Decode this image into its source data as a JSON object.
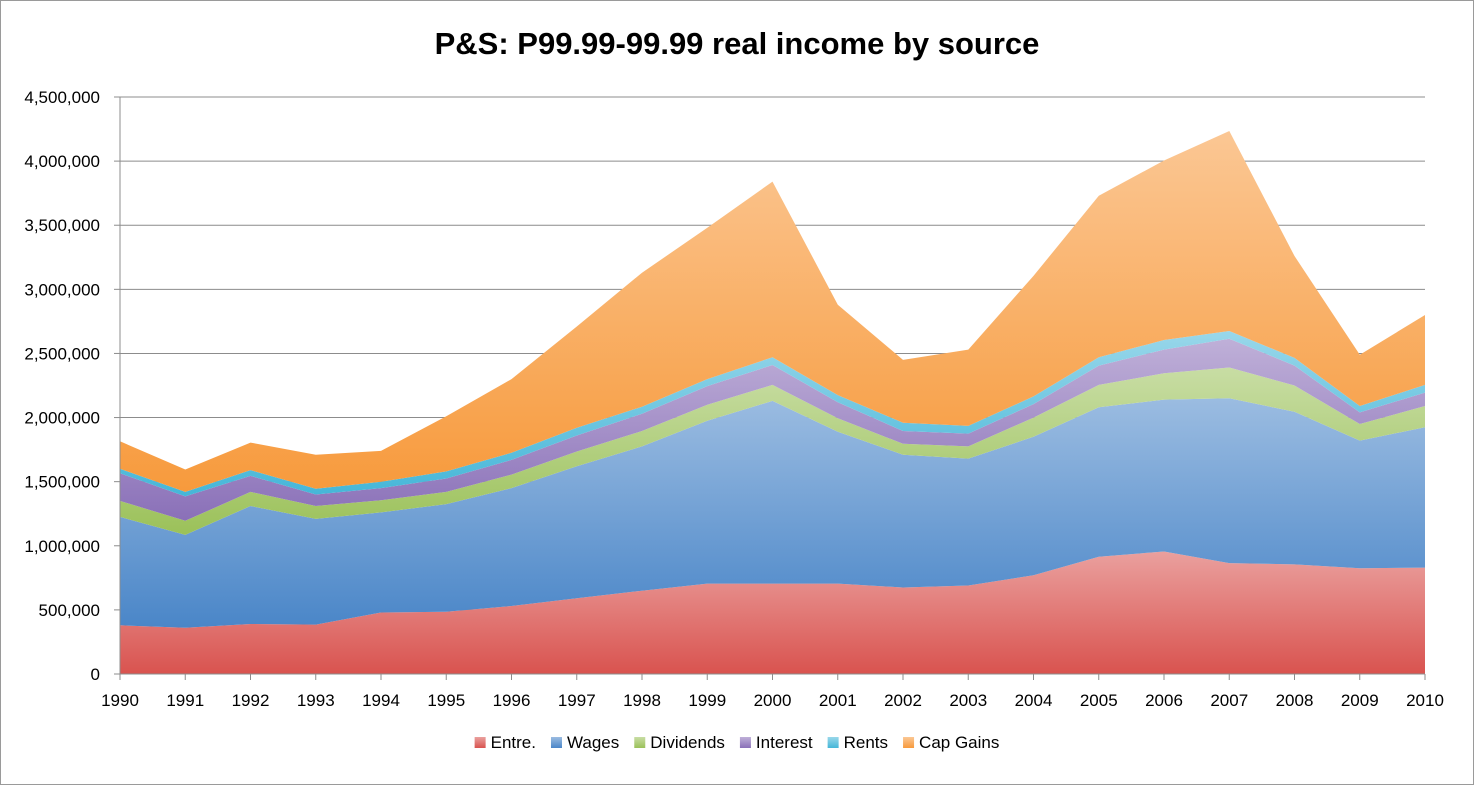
{
  "chart_data": {
    "type": "area",
    "stacked": true,
    "title": "P&S: P99.99-99.99 real income by source",
    "xlabel": "",
    "ylabel": "",
    "ylim": [
      0,
      4500000
    ],
    "ytick_step": 500000,
    "grid": "horizontal",
    "legend_position": "bottom",
    "x": [
      "1990",
      "1991",
      "1992",
      "1993",
      "1994",
      "1995",
      "1996",
      "1997",
      "1998",
      "1999",
      "2000",
      "2001",
      "2002",
      "2003",
      "2004",
      "2005",
      "2006",
      "2007",
      "2008",
      "2009",
      "2010"
    ],
    "series": [
      {
        "name": "Entre.",
        "color": "#d9534f",
        "values": [
          380000,
          360000,
          390000,
          385000,
          480000,
          485000,
          530000,
          590000,
          650000,
          705000,
          705000,
          705000,
          675000,
          690000,
          770000,
          915000,
          955000,
          865000,
          855000,
          825000,
          830000
        ]
      },
      {
        "name": "Wages",
        "color": "#4a86c8",
        "values": [
          845000,
          725000,
          920000,
          825000,
          780000,
          840000,
          920000,
          1030000,
          1125000,
          1270000,
          1425000,
          1185000,
          1035000,
          990000,
          1080000,
          1165000,
          1185000,
          1285000,
          1190000,
          995000,
          1095000
        ]
      },
      {
        "name": "Dividends",
        "color": "#9bc159",
        "values": [
          125000,
          110000,
          110000,
          100000,
          95000,
          95000,
          105000,
          115000,
          120000,
          125000,
          125000,
          105000,
          85000,
          95000,
          150000,
          175000,
          205000,
          240000,
          205000,
          130000,
          165000
        ]
      },
      {
        "name": "Interest",
        "color": "#8a70b8",
        "values": [
          215000,
          190000,
          125000,
          90000,
          95000,
          105000,
          115000,
          125000,
          135000,
          145000,
          155000,
          125000,
          100000,
          100000,
          105000,
          150000,
          185000,
          225000,
          155000,
          90000,
          105000
        ]
      },
      {
        "name": "Rents",
        "color": "#45b6d8",
        "values": [
          35000,
          35000,
          45000,
          45000,
          50000,
          55000,
          55000,
          60000,
          55000,
          55000,
          60000,
          55000,
          65000,
          60000,
          60000,
          65000,
          75000,
          60000,
          60000,
          50000,
          60000
        ]
      },
      {
        "name": "Cap Gains",
        "color": "#f79a3c",
        "values": [
          215000,
          175000,
          215000,
          265000,
          240000,
          430000,
          575000,
          790000,
          1045000,
          1180000,
          1370000,
          705000,
          490000,
          595000,
          940000,
          1260000,
          1400000,
          1560000,
          795000,
          400000,
          545000
        ]
      }
    ]
  }
}
